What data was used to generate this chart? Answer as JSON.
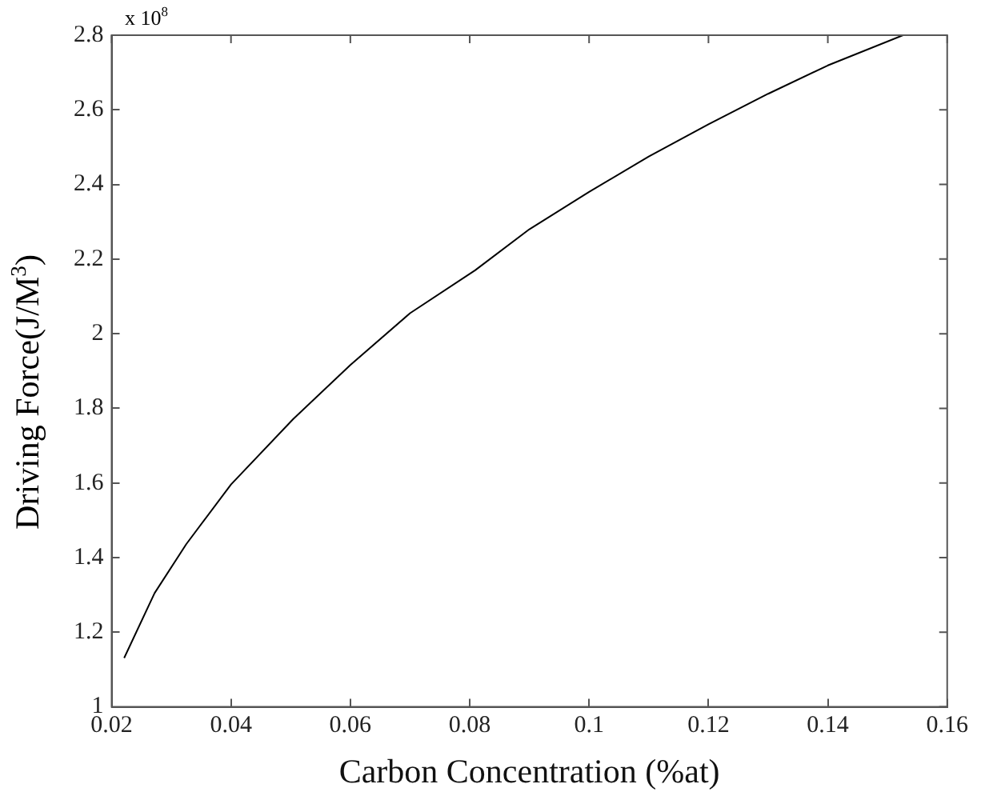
{
  "chart_data": {
    "type": "line",
    "xlabel": "Carbon Concentration (%at)",
    "ylabel": "Driving Force(J/M$^{3}$)",
    "annotations": [
      "x 10$^{8}$"
    ],
    "x": [
      0.0221,
      0.0272,
      0.0325,
      0.04,
      0.0504,
      0.06,
      0.07,
      0.0809,
      0.09,
      0.1,
      0.11,
      0.12,
      0.13,
      0.14,
      0.1526
    ],
    "series": [
      {
        "color": "#000000",
        "values": [
          1.131,
          1.305,
          1.436,
          1.596,
          1.771,
          1.916,
          2.055,
          2.17,
          2.28,
          2.38,
          2.475,
          2.561,
          2.643,
          2.719,
          2.8
        ]
      }
    ],
    "xlim": [
      0.02,
      0.16
    ],
    "xticks": [
      0.02,
      0.04,
      0.06,
      0.08,
      0.1,
      0.12,
      0.14,
      0.16
    ],
    "ylim": [
      1,
      2.8
    ],
    "yticks": [
      1,
      1.2,
      1.4,
      1.6,
      1.8,
      2,
      2.2,
      2.4,
      2.6,
      2.8
    ],
    "grid": false,
    "legend": false,
    "marker": "none",
    "line_style": "solid"
  }
}
